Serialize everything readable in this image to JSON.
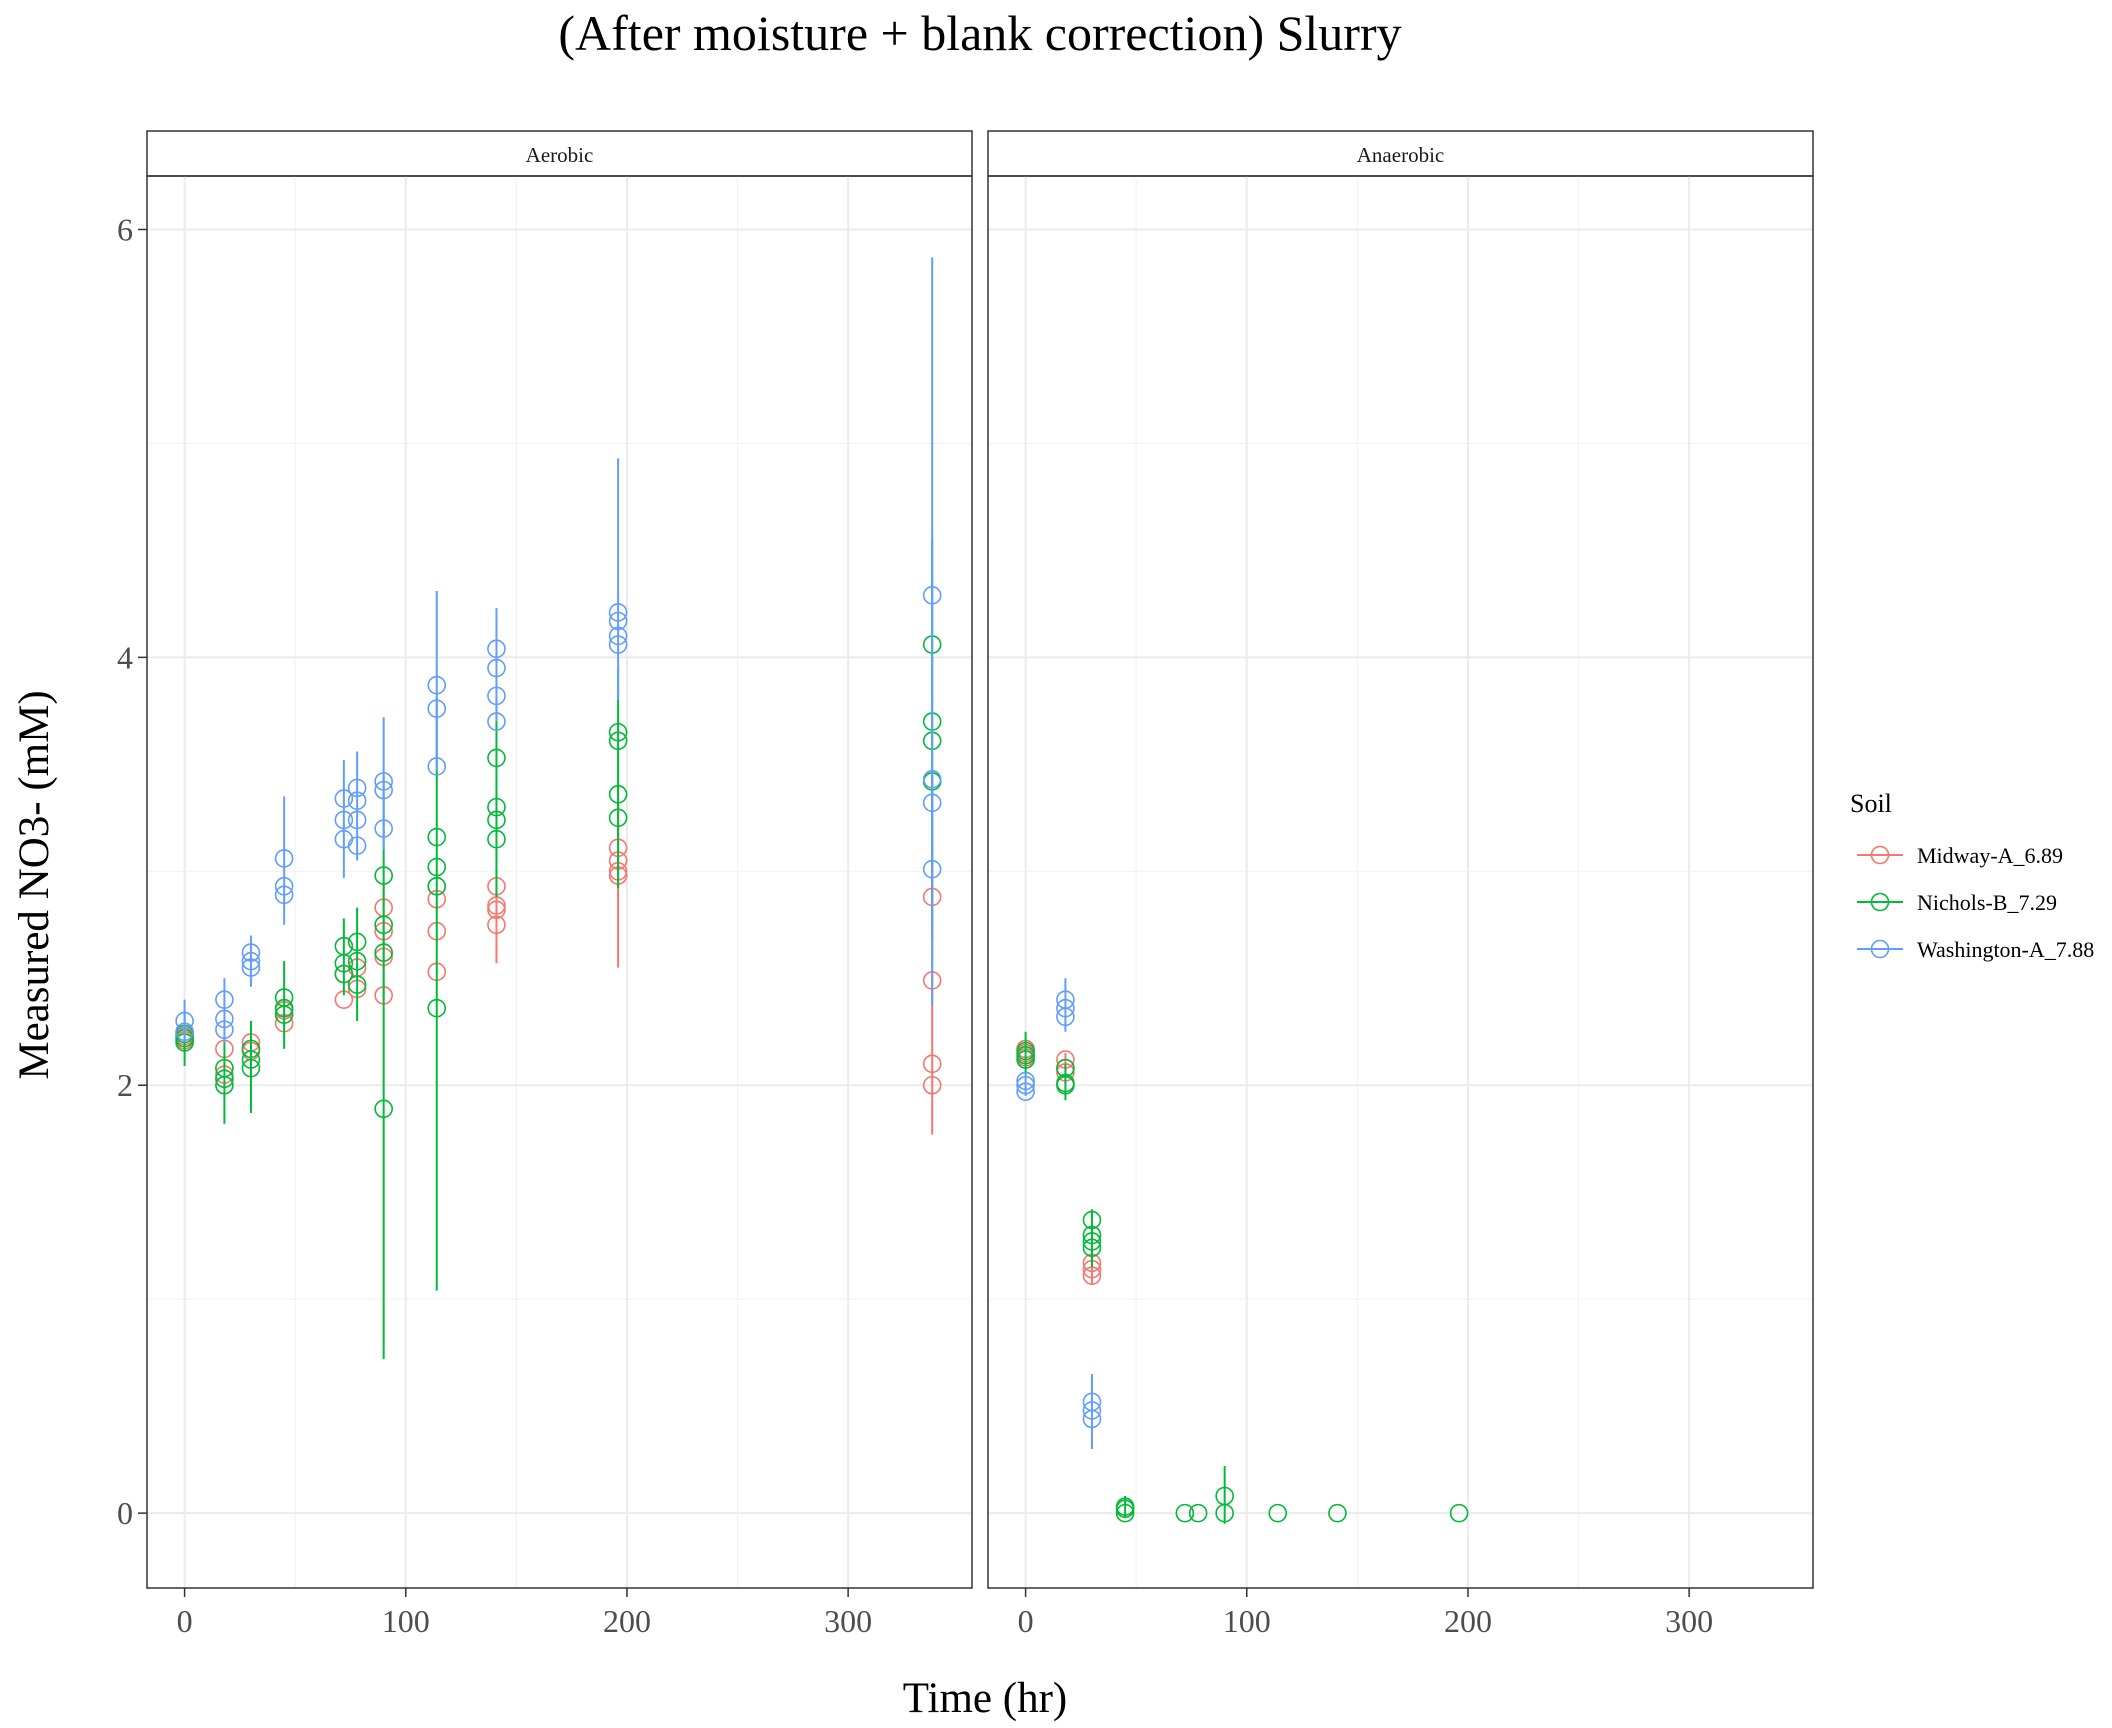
{
  "title": "(After moisture + blank correction) Slurry",
  "colors": {
    "Midway-A_6.89": "#F8766D",
    "Nichols-B_7.29": "#00BA38",
    "Washington-A_7.88": "#619CFF",
    "grid": "#EBEBEB",
    "strip_fill": "#FFFFFF",
    "panel_border": "#333333",
    "axis_text": "#4D4D4D"
  },
  "chart_data": {
    "type": "scatter",
    "title": "(After moisture + blank correction) Slurry",
    "xlabel": "Time (hr)",
    "ylabel": "Measured NO3- (mM)",
    "xlim": [
      -17,
      356
    ],
    "ylim": [
      -0.35,
      6.25
    ],
    "x_ticks": [
      0,
      100,
      200,
      300
    ],
    "y_ticks": [
      0,
      2,
      4,
      6
    ],
    "grid": true,
    "legend": {
      "title": "Soil",
      "position": "right",
      "entries": [
        "Midway-A_6.89",
        "Nichols-B_7.29",
        "Washington-A_7.88"
      ]
    },
    "panels": [
      {
        "label": "Aerobic",
        "series": [
          {
            "name": "Midway-A_6.89",
            "points": [
              [
                0,
                2.21
              ],
              [
                0,
                2.23
              ],
              [
                18,
                2.17
              ],
              [
                18,
                2.05
              ],
              [
                30,
                2.2
              ],
              [
                30,
                2.16
              ],
              [
                45,
                2.29
              ],
              [
                45,
                2.35
              ],
              [
                72,
                2.4
              ],
              [
                72,
                2.52
              ],
              [
                78,
                2.45
              ],
              [
                78,
                2.55
              ],
              [
                90,
                2.42
              ],
              [
                90,
                2.6
              ],
              [
                90,
                2.72
              ],
              [
                90,
                2.83
              ],
              [
                114,
                2.53
              ],
              [
                114,
                2.72
              ],
              [
                114,
                2.87
              ],
              [
                114,
                2.93
              ],
              [
                141,
                2.75
              ],
              [
                141,
                2.82
              ],
              [
                141,
                2.84
              ],
              [
                141,
                2.93
              ],
              [
                196,
                2.98
              ],
              [
                196,
                3.0
              ],
              [
                196,
                3.05
              ],
              [
                196,
                3.11
              ],
              [
                338,
                2.0
              ],
              [
                338,
                2.1
              ],
              [
                338,
                2.49
              ],
              [
                338,
                2.88
              ]
            ],
            "error_bars": [
              [
                196,
                2.55,
                3.55
              ],
              [
                338,
                1.77,
                3.45
              ],
              [
                141,
                2.57,
                3.1
              ],
              [
                90,
                2.4,
                2.95
              ]
            ]
          },
          {
            "name": "Nichols-B_7.29",
            "points": [
              [
                0,
                2.2
              ],
              [
                0,
                2.22
              ],
              [
                0,
                2.24
              ],
              [
                18,
                2.0
              ],
              [
                18,
                2.03
              ],
              [
                18,
                2.08
              ],
              [
                30,
                2.08
              ],
              [
                30,
                2.12
              ],
              [
                30,
                2.17
              ],
              [
                45,
                2.33
              ],
              [
                45,
                2.36
              ],
              [
                45,
                2.41
              ],
              [
                72,
                2.52
              ],
              [
                72,
                2.57
              ],
              [
                72,
                2.65
              ],
              [
                78,
                2.47
              ],
              [
                78,
                2.58
              ],
              [
                78,
                2.67
              ],
              [
                90,
                1.89
              ],
              [
                90,
                2.62
              ],
              [
                90,
                2.75
              ],
              [
                90,
                2.98
              ],
              [
                114,
                2.36
              ],
              [
                114,
                2.93
              ],
              [
                114,
                3.02
              ],
              [
                114,
                3.16
              ],
              [
                141,
                3.15
              ],
              [
                141,
                3.24
              ],
              [
                141,
                3.3
              ],
              [
                141,
                3.53
              ],
              [
                196,
                3.25
              ],
              [
                196,
                3.36
              ],
              [
                196,
                3.61
              ],
              [
                196,
                3.65
              ],
              [
                338,
                3.42
              ],
              [
                338,
                3.61
              ],
              [
                338,
                3.7
              ],
              [
                338,
                4.06
              ]
            ],
            "error_bars": [
              [
                0,
                2.09,
                2.35
              ],
              [
                18,
                1.82,
                2.22
              ],
              [
                30,
                1.87,
                2.3
              ],
              [
                45,
                2.17,
                2.58
              ],
              [
                72,
                2.42,
                2.78
              ],
              [
                78,
                2.3,
                2.83
              ],
              [
                90,
                0.72,
                3.45
              ],
              [
                114,
                1.04,
                3.82
              ],
              [
                141,
                2.88,
                3.82
              ],
              [
                196,
                2.92,
                3.95
              ],
              [
                338,
                2.69,
                4.55
              ]
            ]
          },
          {
            "name": "Washington-A_7.88",
            "points": [
              [
                0,
                2.25
              ],
              [
                0,
                2.3
              ],
              [
                18,
                2.26
              ],
              [
                18,
                2.31
              ],
              [
                18,
                2.4
              ],
              [
                30,
                2.55
              ],
              [
                30,
                2.58
              ],
              [
                30,
                2.62
              ],
              [
                45,
                2.89
              ],
              [
                45,
                2.93
              ],
              [
                45,
                3.06
              ],
              [
                72,
                3.15
              ],
              [
                72,
                3.24
              ],
              [
                72,
                3.34
              ],
              [
                78,
                3.12
              ],
              [
                78,
                3.24
              ],
              [
                78,
                3.33
              ],
              [
                78,
                3.39
              ],
              [
                90,
                3.2
              ],
              [
                90,
                3.38
              ],
              [
                90,
                3.42
              ],
              [
                114,
                3.49
              ],
              [
                114,
                3.76
              ],
              [
                114,
                3.87
              ],
              [
                141,
                3.7
              ],
              [
                141,
                3.82
              ],
              [
                141,
                3.95
              ],
              [
                141,
                4.04
              ],
              [
                196,
                4.06
              ],
              [
                196,
                4.1
              ],
              [
                196,
                4.17
              ],
              [
                196,
                4.21
              ],
              [
                338,
                3.01
              ],
              [
                338,
                3.32
              ],
              [
                338,
                3.43
              ],
              [
                338,
                4.29
              ]
            ],
            "error_bars": [
              [
                0,
                2.2,
                2.4
              ],
              [
                18,
                2.2,
                2.5
              ],
              [
                30,
                2.46,
                2.7
              ],
              [
                45,
                2.75,
                3.35
              ],
              [
                72,
                2.97,
                3.52
              ],
              [
                78,
                3.05,
                3.56
              ],
              [
                90,
                3.1,
                3.72
              ],
              [
                114,
                3.47,
                4.31
              ],
              [
                141,
                3.7,
                4.23
              ],
              [
                196,
                3.8,
                4.93
              ],
              [
                338,
                2.37,
                5.87
              ]
            ]
          }
        ]
      },
      {
        "label": "Anaerobic",
        "series": [
          {
            "name": "Midway-A_6.89",
            "points": [
              [
                0,
                2.13
              ],
              [
                0,
                2.15
              ],
              [
                0,
                2.17
              ],
              [
                18,
                2.06
              ],
              [
                18,
                2.08
              ],
              [
                18,
                2.12
              ],
              [
                30,
                1.11
              ],
              [
                30,
                1.14
              ],
              [
                30,
                1.17
              ]
            ],
            "error_bars": [
              [
                18,
                2.02,
                2.15
              ],
              [
                30,
                1.07,
                1.2
              ]
            ]
          },
          {
            "name": "Nichols-B_7.29",
            "points": [
              [
                0,
                2.12
              ],
              [
                0,
                2.14
              ],
              [
                0,
                2.16
              ],
              [
                18,
                2.0
              ],
              [
                18,
                2.01
              ],
              [
                18,
                2.08
              ],
              [
                30,
                1.24
              ],
              [
                30,
                1.27
              ],
              [
                30,
                1.3
              ],
              [
                30,
                1.37
              ],
              [
                45,
                0.0
              ],
              [
                45,
                0.02
              ],
              [
                45,
                0.03
              ],
              [
                72,
                0.0
              ],
              [
                78,
                0.0
              ],
              [
                90,
                0.0
              ],
              [
                90,
                0.08
              ],
              [
                114,
                0.0
              ],
              [
                141,
                0.0
              ],
              [
                196,
                0.0
              ]
            ],
            "error_bars": [
              [
                0,
                2.05,
                2.25
              ],
              [
                18,
                1.93,
                2.1
              ],
              [
                30,
                1.15,
                1.42
              ],
              [
                45,
                -0.02,
                0.08
              ],
              [
                90,
                -0.05,
                0.22
              ]
            ]
          },
          {
            "name": "Washington-A_7.88",
            "points": [
              [
                0,
                1.97
              ],
              [
                0,
                2.0
              ],
              [
                0,
                2.02
              ],
              [
                18,
                2.32
              ],
              [
                18,
                2.36
              ],
              [
                18,
                2.4
              ],
              [
                30,
                0.44
              ],
              [
                30,
                0.48
              ],
              [
                30,
                0.52
              ]
            ],
            "error_bars": [
              [
                0,
                1.95,
                2.05
              ],
              [
                18,
                2.25,
                2.5
              ],
              [
                30,
                0.3,
                0.65
              ]
            ]
          }
        ]
      }
    ]
  }
}
